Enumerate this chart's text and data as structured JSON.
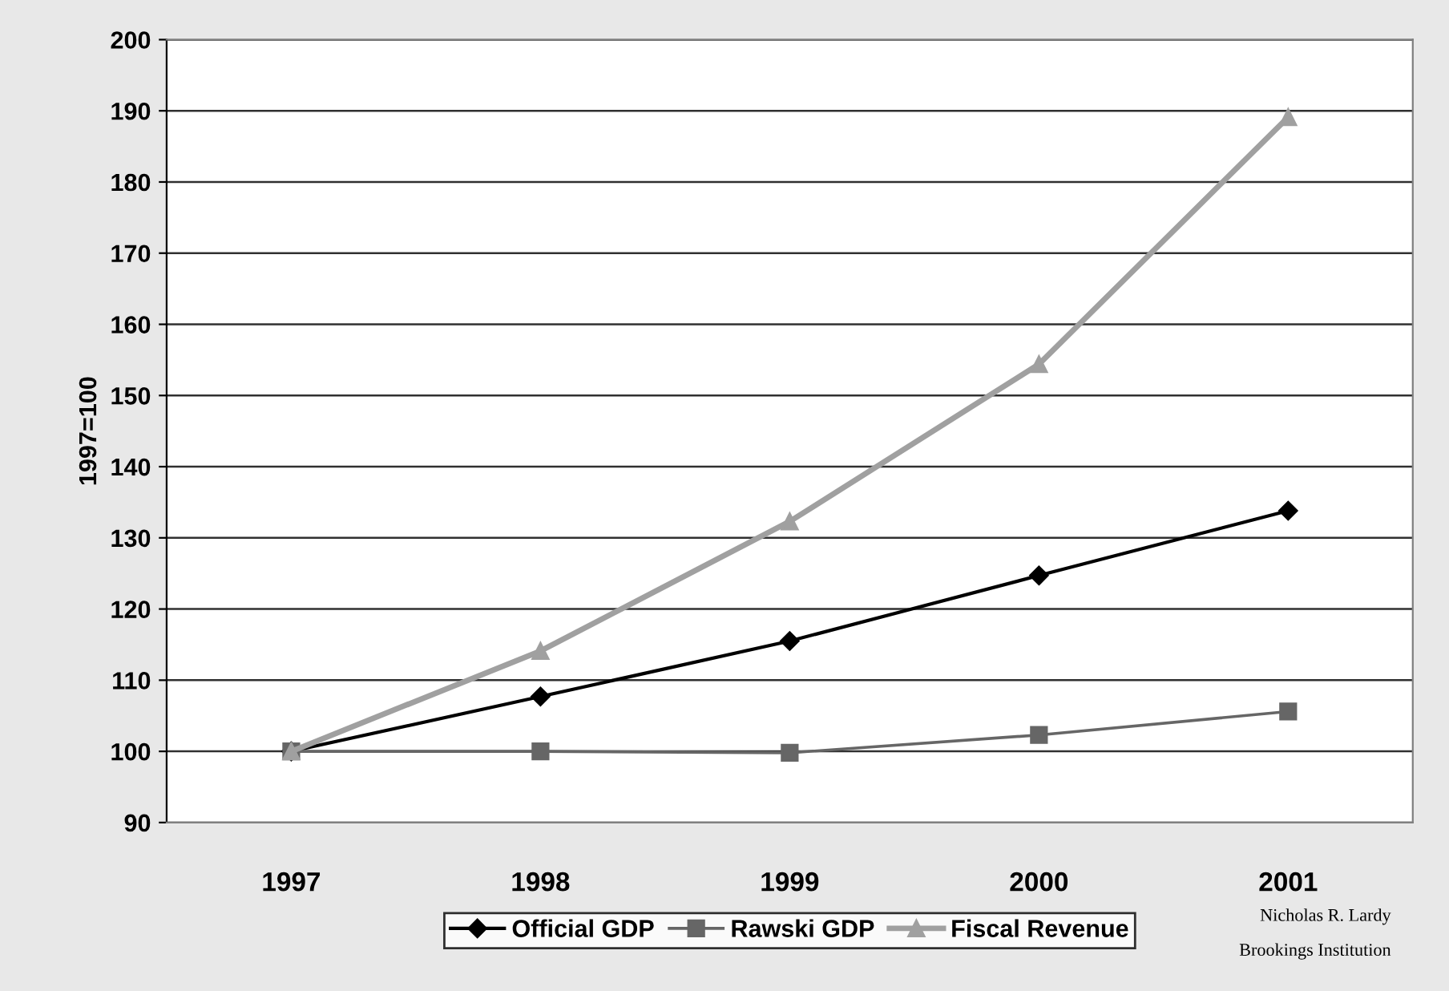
{
  "chart_data": {
    "type": "line",
    "ylabel": "1997=100",
    "categories": [
      "1997",
      "1998",
      "1999",
      "2000",
      "2001"
    ],
    "series": [
      {
        "name": "Official GDP",
        "color": "#000000",
        "marker": "diamond",
        "values": [
          100,
          107.7,
          115.5,
          124.7,
          133.8
        ]
      },
      {
        "name": "Rawski GDP",
        "color": "#666666",
        "marker": "square",
        "values": [
          100,
          100,
          99.8,
          102.3,
          105.6
        ]
      },
      {
        "name": "Fiscal Revenue",
        "color": "#a0a0a0",
        "marker": "triangle",
        "values": [
          100,
          114.1,
          132.3,
          154.4,
          189.1
        ]
      }
    ],
    "ylim": [
      90,
      200
    ],
    "yticks": [
      90,
      100,
      110,
      120,
      130,
      140,
      150,
      160,
      170,
      180,
      190,
      200
    ],
    "grid": "y",
    "legend": "bottom",
    "annotations": [
      "Nicholas R. Lardy",
      "Brookings Institution"
    ]
  }
}
